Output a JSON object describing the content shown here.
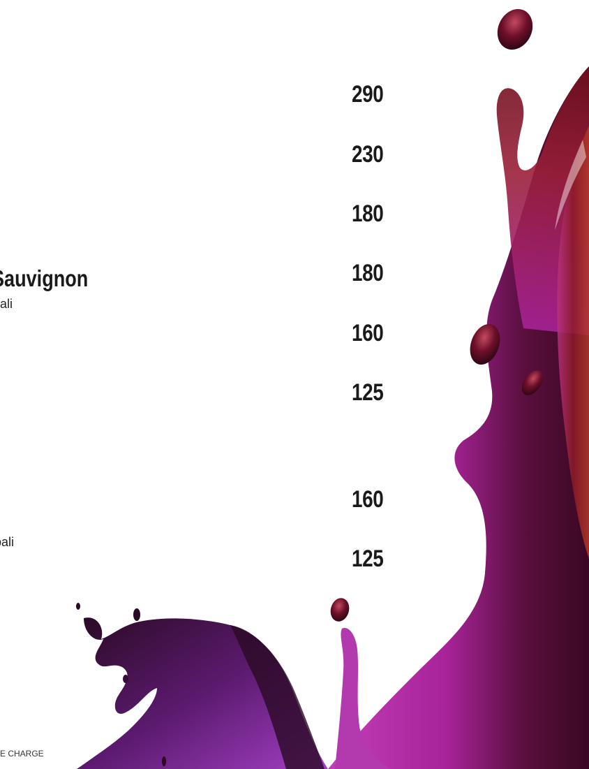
{
  "prices": [
    "290",
    "230",
    "180",
    "180",
    "160",
    "125",
    "160",
    "125"
  ],
  "wine_name": "Sauvignon",
  "sub_label_1": "ali",
  "sub_label_2": "bali",
  "footer_note": "E CHARGE",
  "colors": {
    "background": "#ffffff",
    "text": "#1a1a1a",
    "splash_magenta": "#a8239a",
    "splash_red": "#8c1a26",
    "splash_purple": "#6a1a6e",
    "splash_dark": "#2a0a24"
  }
}
